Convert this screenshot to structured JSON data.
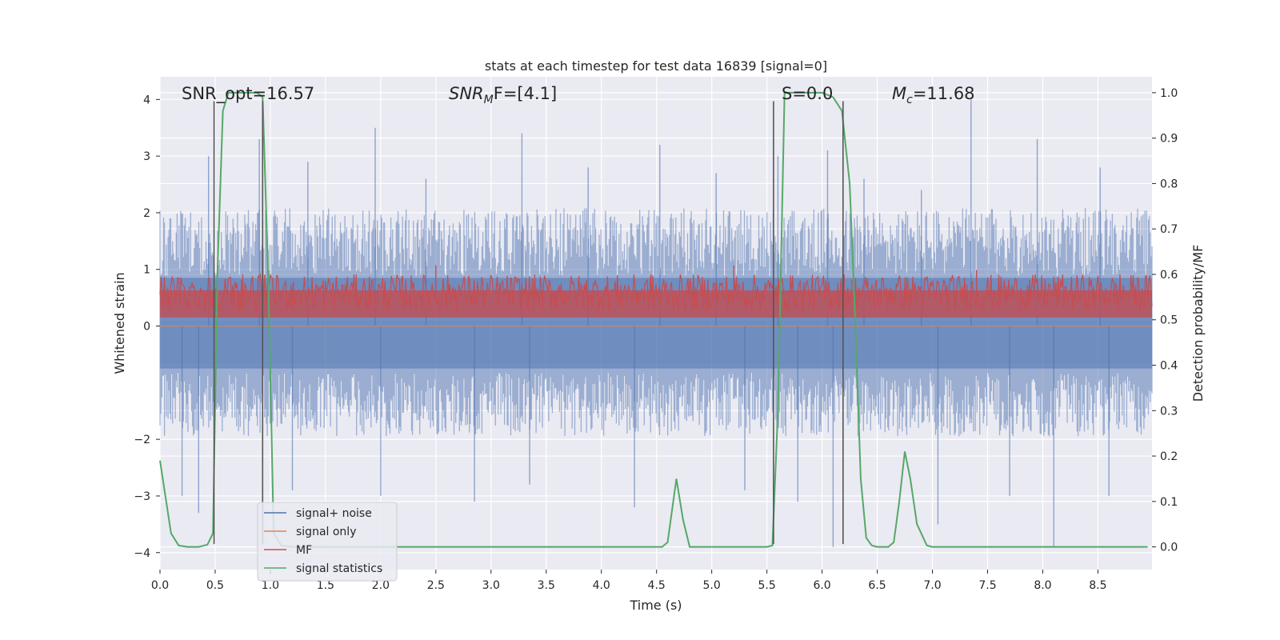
{
  "chart_data": {
    "type": "line",
    "title": "stats at each timestep for test data 16839 [signal=0]",
    "xlabel": "Time (s)",
    "ylabel": "Whitened strain",
    "ylabel_right": "Detection probability/MF",
    "xlim": [
      0.0,
      8.99
    ],
    "ylim": [
      -4.3,
      4.4
    ],
    "ylim_right": [
      -0.05,
      1.035
    ],
    "x_ticks": [
      "0.0",
      "0.5",
      "1.0",
      "1.5",
      "2.0",
      "2.5",
      "3.0",
      "3.5",
      "4.0",
      "4.5",
      "5.0",
      "5.5",
      "6.0",
      "6.5",
      "7.0",
      "7.5",
      "8.0",
      "8.5"
    ],
    "y_ticks": [
      "4",
      "3",
      "2",
      "1",
      "0",
      "−2",
      "−3",
      "−4"
    ],
    "y_ticks_right": [
      "1.0",
      "0.9",
      "0.8",
      "0.7",
      "0.6",
      "0.5",
      "0.4",
      "0.3",
      "0.2",
      "0.1",
      "0.0"
    ],
    "grid": true,
    "annotations": {
      "snr_opt": "SNR_opt=16.57",
      "snr_mf_base": "SNR",
      "snr_mf_sub": "M",
      "snr_mf_rest": "F=[4.1]",
      "s_value": "S=0.0",
      "mc_base": "M",
      "mc_sub": "c",
      "mc_rest": "=11.68"
    },
    "legend": {
      "placement": "lower-left",
      "entries": [
        "signal+ noise",
        "signal only",
        "MF",
        "signal statistics"
      ]
    },
    "series": [
      {
        "name": "signal+ noise",
        "axis": "left",
        "description": "whitened strain, noise band approx ±1.5 with spikes",
        "band": [
          -1.5,
          1.6
        ],
        "peaks_x": [
          0.44,
          0.9,
          1.34,
          1.95,
          2.41,
          3.28,
          3.88,
          4.53,
          5.04,
          5.6,
          6.05,
          6.38,
          6.9,
          7.35,
          7.95,
          8.52
        ],
        "peaks_y": [
          3.0,
          3.3,
          2.9,
          3.5,
          2.6,
          3.4,
          2.8,
          3.2,
          2.7,
          3.0,
          3.1,
          2.6,
          2.4,
          4.0,
          3.3,
          2.8
        ],
        "troughs_x": [
          0.2,
          0.35,
          1.2,
          2.0,
          2.85,
          3.35,
          4.3,
          5.3,
          5.78,
          6.1,
          7.05,
          7.7,
          8.1,
          8.6
        ],
        "troughs_y": [
          -3.0,
          -3.3,
          -2.9,
          -3.0,
          -3.1,
          -2.8,
          -3.2,
          -2.9,
          -3.1,
          -3.9,
          -3.5,
          -3.0,
          -3.9,
          -3.0
        ]
      },
      {
        "name": "signal only",
        "axis": "left",
        "x": [
          0.0,
          8.99
        ],
        "y": [
          0.0,
          0.0
        ]
      },
      {
        "name": "MF",
        "axis": "right",
        "description": "matched-filter output, band approx 0.5 to 0.6",
        "band": [
          0.5,
          0.6
        ],
        "peaks_x": [
          0.75,
          2.5,
          4.45,
          5.2,
          6.2,
          7.4,
          8.7
        ],
        "peaks_y": [
          0.6,
          0.62,
          0.6,
          0.62,
          0.6,
          0.61,
          0.6
        ]
      },
      {
        "name": "signal statistics",
        "axis": "right",
        "x": [
          0.0,
          0.05,
          0.1,
          0.17,
          0.25,
          0.35,
          0.43,
          0.48,
          0.52,
          0.57,
          0.62,
          0.7,
          0.8,
          0.88,
          0.93,
          0.98,
          1.03,
          1.1,
          1.2,
          4.5,
          4.55,
          4.6,
          4.68,
          4.74,
          4.8,
          5.5,
          5.55,
          5.6,
          5.66,
          5.75,
          5.9,
          6.0,
          6.1,
          6.18,
          6.25,
          6.3,
          6.35,
          6.4,
          6.45,
          6.5,
          6.6,
          6.65,
          6.7,
          6.75,
          6.8,
          6.86,
          6.95,
          7.0,
          8.95
        ],
        "y": [
          0.19,
          0.11,
          0.03,
          0.003,
          0.0,
          0.0,
          0.005,
          0.03,
          0.6,
          0.96,
          1.0,
          1.0,
          1.0,
          1.0,
          0.99,
          0.6,
          0.03,
          0.003,
          0.0,
          0.0,
          0.0,
          0.01,
          0.15,
          0.06,
          0.0,
          0.0,
          0.003,
          0.3,
          1.0,
          1.0,
          1.0,
          1.0,
          0.99,
          0.96,
          0.8,
          0.5,
          0.15,
          0.02,
          0.003,
          0.0,
          0.0,
          0.01,
          0.1,
          0.21,
          0.15,
          0.05,
          0.003,
          0.0,
          0.0
        ]
      }
    ],
    "vlines": [
      0.49,
      0.93,
      5.56,
      6.19
    ],
    "colors": {
      "background": "#eaeaf2",
      "grid": "#ffffff",
      "signal_noise": "#4c72b0",
      "signal_only": "#dd8452",
      "mf": "#c44e52",
      "stats": "#55a868",
      "vline": "#555555"
    }
  }
}
